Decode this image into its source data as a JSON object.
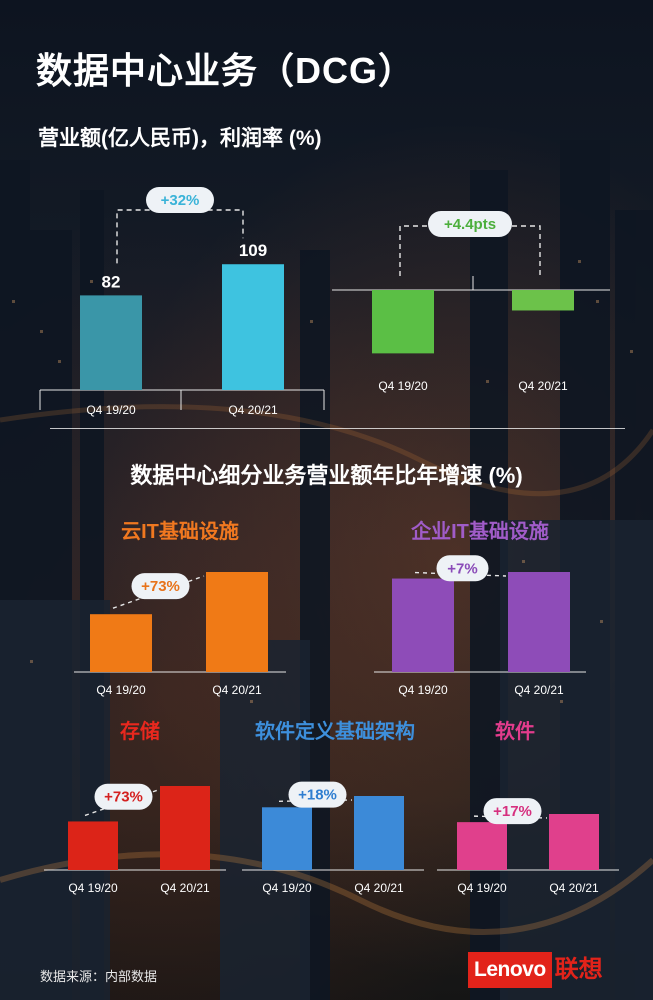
{
  "title": "数据中心业务（DCG）",
  "subtitle": "营业额(亿人民币)，利润率 (%)",
  "section_title": "数据中心细分业务营业额年比年增速 (%)",
  "footnote": "数据来源：内部数据",
  "logo": {
    "en": "Lenovo",
    "cn": "联想",
    "color": "#e2231a"
  },
  "chart_data": [
    {
      "id": "revenue",
      "type": "bar",
      "categories": [
        "Q4 19/20",
        "Q4 20/21"
      ],
      "values": [
        82,
        109
      ],
      "value_labels": [
        "82",
        "109"
      ],
      "change_label": "+32%",
      "colors": [
        "#3a96a8",
        "#3ec3e0"
      ],
      "ylim": [
        0,
        130
      ]
    },
    {
      "id": "margin",
      "type": "bar",
      "categories": [
        "Q4 19/20",
        "Q4 20/21"
      ],
      "values": [
        -6.5,
        -2.1
      ],
      "change_label": "+4.4pts",
      "colors": [
        "#5bbf45",
        "#6cc24a"
      ],
      "ylim": [
        -8,
        0
      ]
    },
    {
      "id": "cloud-it",
      "type": "bar",
      "title": "云IT基础设施",
      "title_color": "#f07820",
      "categories": [
        "Q4 19/20",
        "Q4 20/21"
      ],
      "values": [
        100,
        173
      ],
      "change_label": "+73%",
      "label_color": "#e8731a",
      "colors": [
        "#f07a16",
        "#f07a16"
      ]
    },
    {
      "id": "enterprise-it",
      "type": "bar",
      "title": "企业IT基础设施",
      "title_color": "#a05cc8",
      "categories": [
        "Q4 19/20",
        "Q4 20/21"
      ],
      "values": [
        100,
        107
      ],
      "change_label": "+7%",
      "label_color": "#8a4bb8",
      "colors": [
        "#8e4cb8",
        "#8e4cb8"
      ]
    },
    {
      "id": "storage",
      "type": "bar",
      "title": "存储",
      "title_color": "#e8281e",
      "categories": [
        "Q4 19/20",
        "Q4 20/21"
      ],
      "values": [
        100,
        173
      ],
      "change_label": "+73%",
      "label_color": "#d42020",
      "colors": [
        "#dc2418",
        "#dc2418"
      ]
    },
    {
      "id": "software-defined",
      "type": "bar",
      "title": "软件定义基础架构",
      "title_color": "#3d8fdc",
      "categories": [
        "Q4 19/20",
        "Q4 20/21"
      ],
      "values": [
        100,
        118
      ],
      "change_label": "+18%",
      "label_color": "#2f7ed0",
      "colors": [
        "#3c8ad8",
        "#3c8ad8"
      ]
    },
    {
      "id": "software",
      "type": "bar",
      "title": "软件",
      "title_color": "#e23c8c",
      "categories": [
        "Q4 19/20",
        "Q4 20/21"
      ],
      "values": [
        100,
        117
      ],
      "change_label": "+17%",
      "label_color": "#d6307f",
      "colors": [
        "#e0408c",
        "#e0408c"
      ]
    }
  ]
}
